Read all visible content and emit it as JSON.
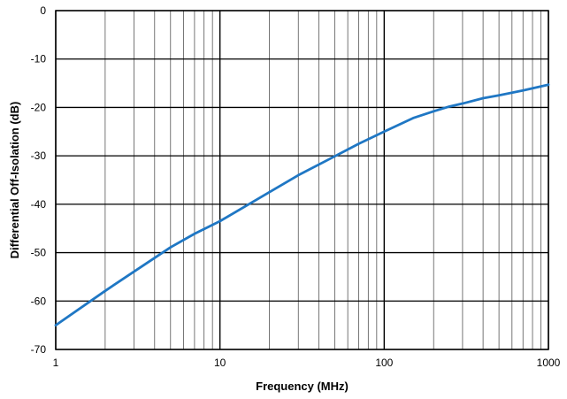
{
  "chart_data": {
    "type": "line",
    "title": "",
    "xlabel": "Frequency (MHz)",
    "ylabel": "Differential Off-Isolation (dB)",
    "x_scale": "log",
    "xlim": [
      1,
      1000
    ],
    "ylim": [
      -70,
      0
    ],
    "x_ticks": [
      1,
      10,
      100,
      1000
    ],
    "x_tick_labels": [
      "1",
      "10",
      "100",
      "1000"
    ],
    "y_ticks": [
      0,
      -10,
      -20,
      -30,
      -40,
      -50,
      -60,
      -70
    ],
    "y_tick_labels": [
      "0",
      "-10",
      "-20",
      "-30",
      "-40",
      "-50",
      "-60",
      "-70"
    ],
    "grid": true,
    "legend": "none",
    "series_color": "#1f77c4",
    "series": [
      {
        "x": [
          1,
          2,
          3,
          5,
          7,
          10,
          20,
          30,
          50,
          70,
          100,
          150,
          200,
          250,
          300,
          400,
          500,
          700,
          1000
        ],
        "y": [
          -65,
          -57.9,
          -53.9,
          -48.9,
          -46.1,
          -43.5,
          -37.5,
          -34,
          -30.1,
          -27.5,
          -25,
          -22.2,
          -20.8,
          -19.8,
          -19.2,
          -18.1,
          -17.5,
          -16.5,
          -15.3
        ]
      }
    ]
  }
}
